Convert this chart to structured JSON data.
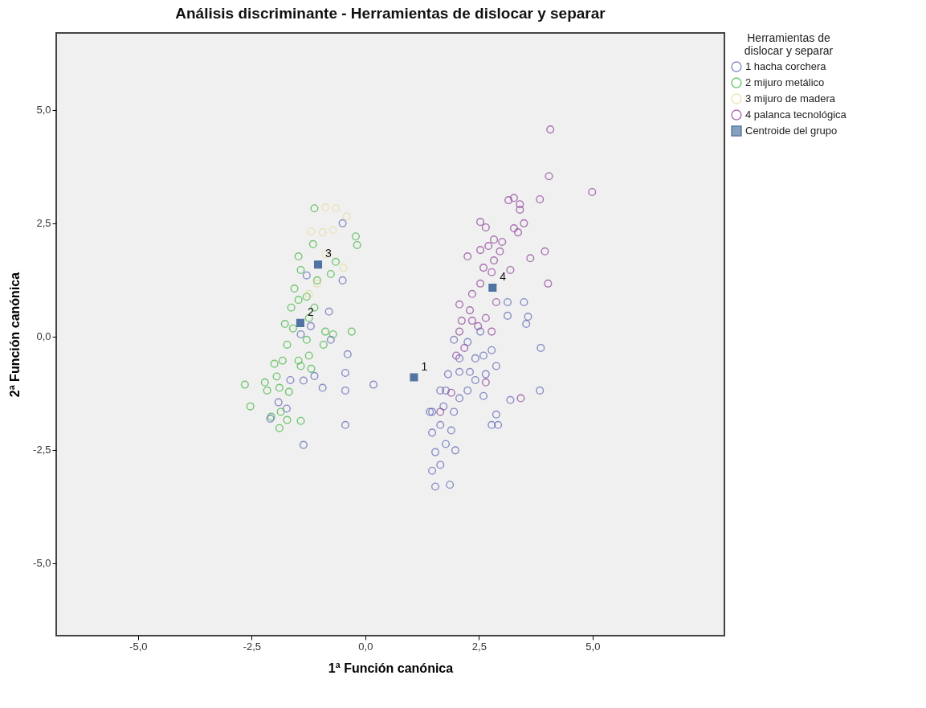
{
  "chart_data": {
    "type": "scatter",
    "title": "Análisis discriminante - Herramientas de dislocar y separar",
    "xlabel": "1ª Función canónica",
    "ylabel": "2ª Función canónica",
    "legend_title": "Herramientas de dislocar y separar",
    "legend": "right",
    "grid": false,
    "xlim": [
      -6.8,
      7.9
    ],
    "ylim": [
      -6.6,
      6.7
    ],
    "xticks": [
      {
        "value": -5,
        "label": "-5,0"
      },
      {
        "value": -2.5,
        "label": "-2,5"
      },
      {
        "value": 0,
        "label": "0,0"
      },
      {
        "value": 2.5,
        "label": "2,5"
      },
      {
        "value": 5,
        "label": "5,0"
      }
    ],
    "yticks": [
      {
        "value": -5,
        "label": "-5,0"
      },
      {
        "value": -2.5,
        "label": "-2,5"
      },
      {
        "value": 0,
        "label": "0,0"
      },
      {
        "value": 2.5,
        "label": "2,5"
      },
      {
        "value": 5,
        "label": "5,0"
      }
    ],
    "series": [
      {
        "name": "1 hacha corchera",
        "color": "#5b62b5",
        "marker": "circle",
        "x": [
          1.54,
          1.47,
          1.86,
          1.65,
          1.54,
          1.77,
          1.98,
          1.47,
          1.65,
          1.89,
          1.47,
          1.72,
          1.95,
          2.07,
          1.77,
          2.25,
          1.82,
          2.07,
          2.3,
          2.42,
          2.07,
          2.6,
          2.78,
          2.88,
          2.6,
          3.19,
          2.88,
          2.78,
          2.92,
          3.84,
          1.95,
          2.25,
          2.53,
          3.13,
          3.13,
          3.49,
          3.58,
          3.54,
          3.86,
          2.65,
          2.42,
          1.65,
          1.42,
          -0.5,
          -0.5,
          -0.8,
          -1.2,
          -0.39,
          -0.44,
          0.18,
          -0.44,
          -0.94,
          -1.12,
          -1.36,
          -1.65,
          -1.91,
          -2.09,
          -0.44,
          -1.36,
          -1.73,
          -1.42,
          -0.76,
          -1.29
        ],
        "values": [
          -3.31,
          -2.96,
          -3.27,
          -2.83,
          -2.55,
          -2.37,
          -2.51,
          -2.12,
          -1.95,
          -2.07,
          -1.66,
          -1.54,
          -1.66,
          -1.36,
          -1.19,
          -1.19,
          -0.83,
          -0.78,
          -0.78,
          -0.48,
          -0.48,
          -0.42,
          -0.3,
          -0.65,
          -1.31,
          -1.4,
          -1.72,
          -1.95,
          -1.95,
          -1.19,
          -0.07,
          -0.12,
          0.11,
          0.76,
          0.46,
          0.76,
          0.44,
          0.28,
          -0.25,
          -0.83,
          -0.96,
          -1.19,
          -1.66,
          2.5,
          1.24,
          0.55,
          0.23,
          -0.39,
          -0.8,
          -1.06,
          -1.19,
          -1.13,
          -0.87,
          -0.97,
          -0.96,
          -1.45,
          -1.81,
          -1.95,
          -2.39,
          -1.59,
          0.05,
          -0.07,
          1.35
        ]
      },
      {
        "name": "2 mijuro metálico",
        "color": "#3db33d",
        "marker": "circle",
        "x": [
          -1.12,
          -0.21,
          -0.18,
          -1.47,
          -1.15,
          -0.65,
          -0.76,
          -1.42,
          -1.56,
          -1.29,
          -1.06,
          -1.63,
          -1.77,
          -1.12,
          -1.29,
          -1.72,
          -1.82,
          -1.47,
          -1.24,
          -2.0,
          -0.88,
          -0.3,
          -0.71,
          -0.92,
          -1.95,
          -2.21,
          -2.16,
          -1.89,
          -1.68,
          -1.42,
          -1.86,
          -1.72,
          -1.42,
          -1.89,
          -2.07,
          -1.19,
          -1.59,
          -1.24,
          -1.47,
          -2.65,
          -2.53
        ],
        "values": [
          2.83,
          2.21,
          2.02,
          1.77,
          2.04,
          1.65,
          1.38,
          1.47,
          1.06,
          0.88,
          1.24,
          0.64,
          0.28,
          0.64,
          -0.07,
          -0.18,
          -0.53,
          -0.53,
          -0.42,
          -0.6,
          0.11,
          0.11,
          0.05,
          -0.18,
          -0.88,
          -1.01,
          -1.19,
          -1.13,
          -1.22,
          -0.65,
          -1.66,
          -1.84,
          -1.86,
          -2.02,
          -1.77,
          -0.71,
          0.18,
          0.41,
          0.81,
          -1.06,
          -1.54
        ]
      },
      {
        "name": "3 mijuro de madera",
        "color": "#e6dc9c",
        "marker": "circle",
        "x": [
          -0.65,
          -0.41,
          -0.88,
          -1.19,
          -0.94,
          -0.71,
          -0.48,
          -1.06,
          -1.24,
          -0.88
        ],
        "values": [
          2.83,
          2.65,
          2.85,
          2.32,
          2.3,
          2.35,
          1.52,
          1.17,
          0.94,
          1.82
        ]
      },
      {
        "name": "4 palanca tecnológica",
        "color": "#8c3c98",
        "marker": "circle",
        "x": [
          4.07,
          4.04,
          4.99,
          3.84,
          3.27,
          3.15,
          3.4,
          3.4,
          3.49,
          3.27,
          3.36,
          2.53,
          2.65,
          2.83,
          3.01,
          2.71,
          2.96,
          2.53,
          2.25,
          3.63,
          3.95,
          2.83,
          2.6,
          2.78,
          3.19,
          2.53,
          4.02,
          2.35,
          2.07,
          2.3,
          2.65,
          2.48,
          2.78,
          2.07,
          2.18,
          2.0,
          2.65,
          3.42,
          1.89,
          1.65,
          2.35,
          2.88,
          2.12
        ],
        "values": [
          4.57,
          3.54,
          3.19,
          3.03,
          3.06,
          3.01,
          2.92,
          2.8,
          2.5,
          2.39,
          2.3,
          2.53,
          2.41,
          2.14,
          2.09,
          2.0,
          1.88,
          1.91,
          1.77,
          1.73,
          1.88,
          1.68,
          1.52,
          1.42,
          1.47,
          1.17,
          1.17,
          0.94,
          0.71,
          0.58,
          0.41,
          0.23,
          0.11,
          0.11,
          -0.25,
          -0.42,
          -1.01,
          -1.36,
          -1.24,
          -1.66,
          0.35,
          0.76,
          0.35
        ]
      },
      {
        "name": "Centroide del grupo",
        "color": "#0d3f80",
        "marker": "square",
        "x": [
          1.07,
          -1.43,
          -1.04,
          2.8
        ],
        "values": [
          -0.9,
          0.3,
          1.59,
          1.08
        ]
      }
    ],
    "annotations": [
      {
        "text": "1",
        "x": 1.07,
        "y": -0.9
      },
      {
        "text": "2",
        "x": -1.43,
        "y": 0.3
      },
      {
        "text": "3",
        "x": -1.04,
        "y": 1.59
      },
      {
        "text": "4",
        "x": 2.8,
        "y": 1.08
      }
    ]
  }
}
